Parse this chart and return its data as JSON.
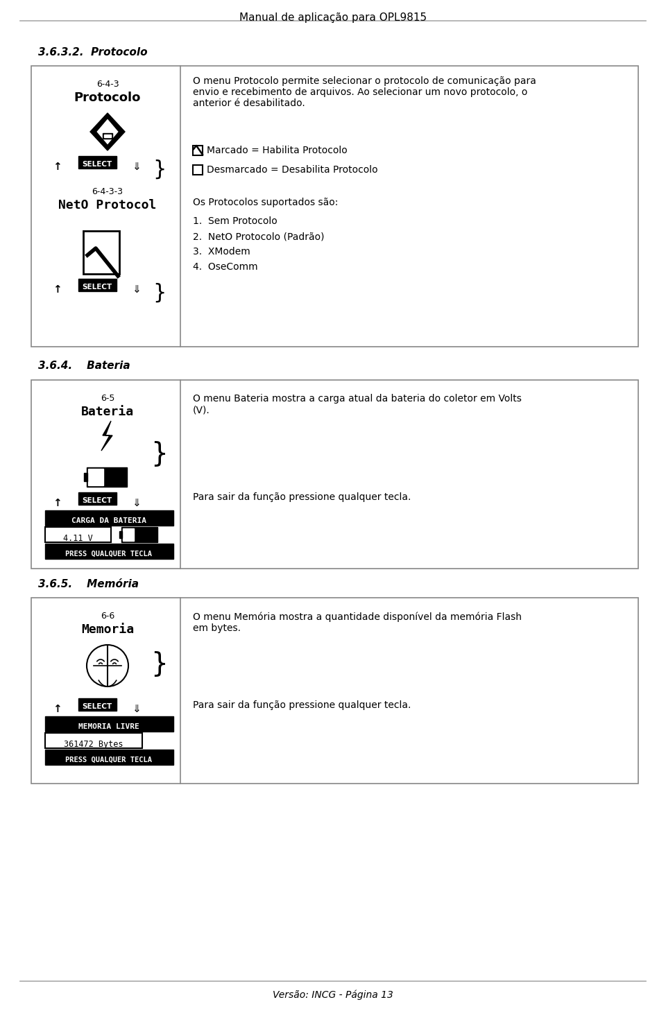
{
  "page_title": "Manual de aplicação para OPL9815",
  "footer": "Versão: INCG - Página 13",
  "section1_heading": "3.6.3.2.  Protocolo",
  "section1_left_top_label": "6-4-3",
  "section1_left_top_title": "Protocolo",
  "section1_left_bottom_label": "6-4-3-3",
  "section1_left_bottom_title": "NetO Protocol",
  "section1_right_para1": "O menu Protocolo permite selecionar o protocolo de comunicação para\nenvio e recebimento de arquivos. Ao selecionar um novo protocolo, o\nanterior é desabilitado.",
  "section1_right_list_intro": "Os Protocolos suportados são:",
  "section1_right_list": [
    "1.  Sem Protocolo",
    "2.  NetO Protocolo (Padrão)",
    "3.  XModem",
    "4.  OseComm"
  ],
  "section2_heading": "3.6.4.    Bateria",
  "section2_left_label": "6-5",
  "section2_left_title": "Bateria",
  "section2_screen1": "CARGA DA BATERIA",
  "section2_screen2": "4.11 V",
  "section2_screen3": "PRESS QUALQUER TECLA",
  "section2_right_para1": "O menu Bateria mostra a carga atual da bateria do coletor em Volts\n(V).",
  "section2_right_para2": "Para sair da função pressione qualquer tecla.",
  "section3_heading": "3.6.5.    Memória",
  "section3_left_label": "6-6",
  "section3_left_title": "Memoria",
  "section3_screen1": "MEMORIA LIVRE",
  "section3_screen2": "361472 Bytes",
  "section3_screen3": "PRESS QUALQUER TECLA",
  "section3_right_para1": "O menu Memória mostra a quantidade disponível da memória Flash\nem bytes.",
  "section3_right_para2": "Para sair da função pressione qualquer tecla.",
  "bg_color": "#ffffff",
  "text_color": "#000000",
  "border_color": "#888888",
  "title_line_color": "#aaaaaa"
}
